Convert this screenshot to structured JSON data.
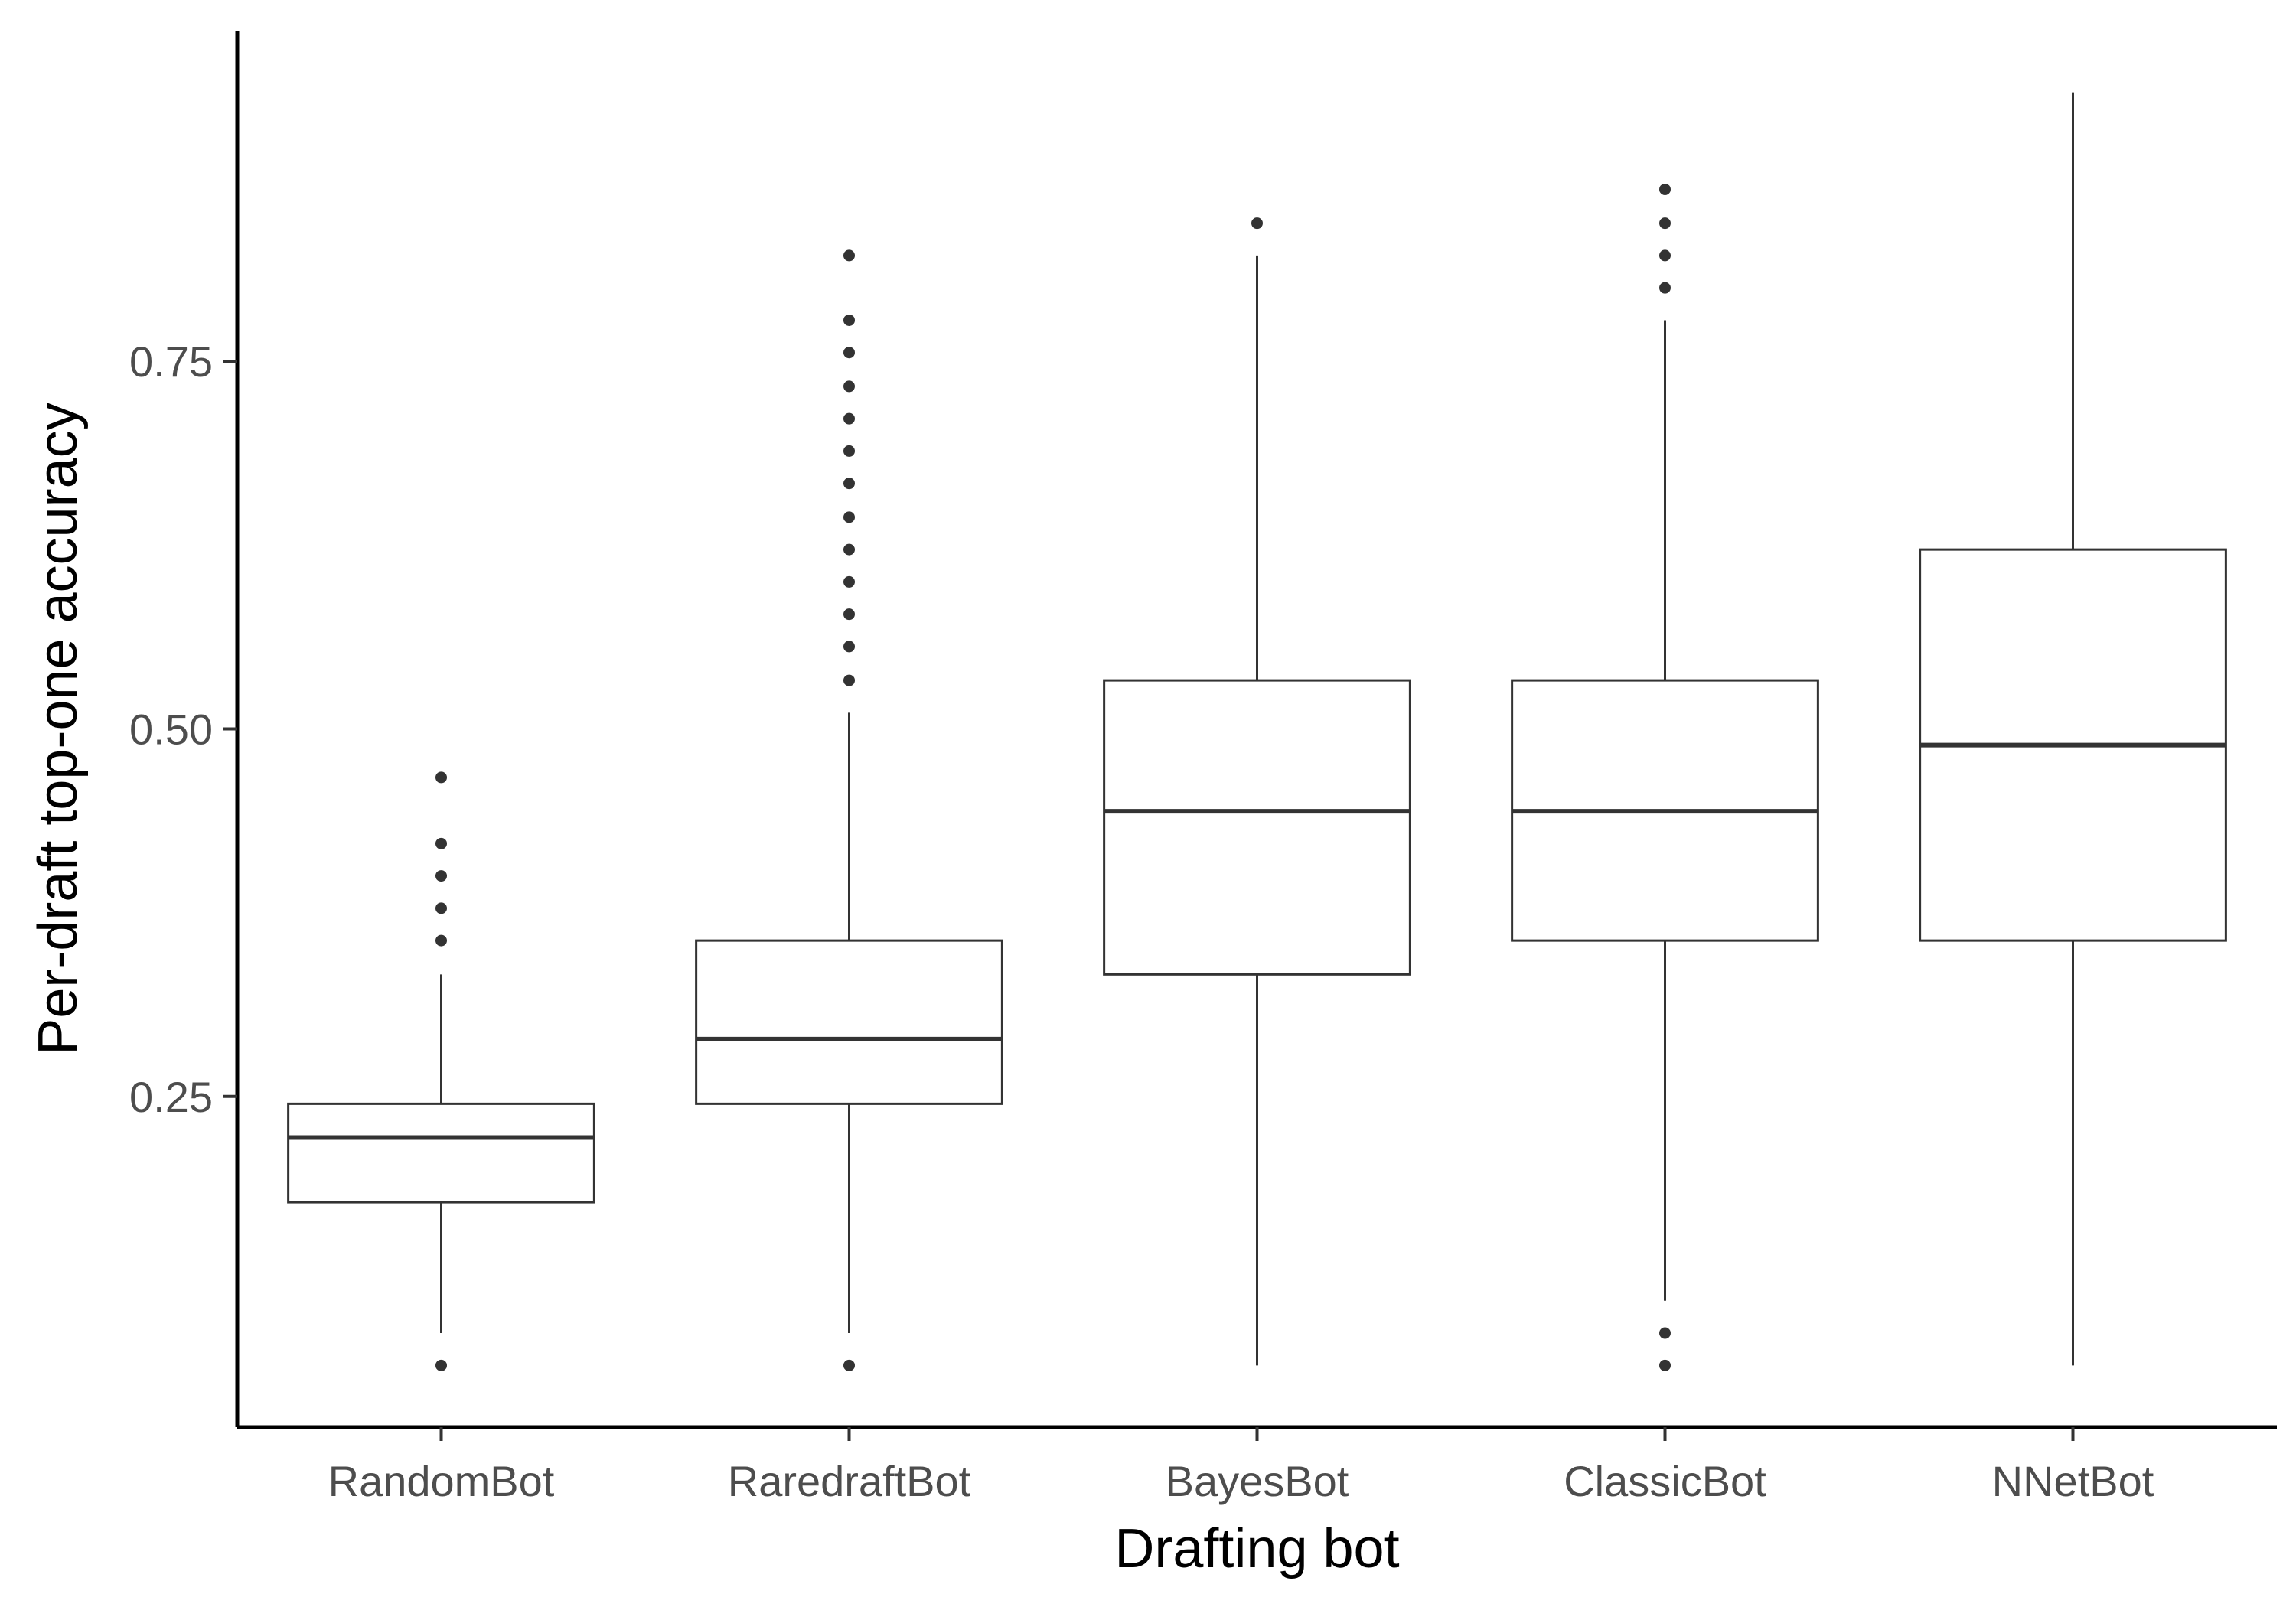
{
  "chart_data": {
    "type": "box",
    "xlabel": "Drafting bot",
    "ylabel": "Per-draft top-one accuracy",
    "ylim": [
      0.025,
      0.975
    ],
    "yticks": [
      0.25,
      0.5,
      0.75
    ],
    "ytick_labels": [
      "0.25",
      "0.50",
      "0.75"
    ],
    "grid": false,
    "colors": {
      "box_stroke": "#333333",
      "box_fill": "#ffffff",
      "axis": "#000000"
    },
    "categories": [
      "RandomBot",
      "RaredraftBot",
      "BayesBot",
      "ClassicBot",
      "NNetBot"
    ],
    "boxes": [
      {
        "q1": 0.178,
        "median": 0.222,
        "q3": 0.245,
        "whisker_low": 0.089,
        "whisker_high": 0.333,
        "outliers": [
          0.067,
          0.356,
          0.378,
          0.4,
          0.422,
          0.467
        ]
      },
      {
        "q1": 0.245,
        "median": 0.289,
        "q3": 0.356,
        "whisker_low": 0.089,
        "whisker_high": 0.511,
        "outliers": [
          0.067,
          0.533,
          0.556,
          0.578,
          0.6,
          0.622,
          0.644,
          0.667,
          0.689,
          0.711,
          0.733,
          0.756,
          0.778,
          0.822
        ]
      },
      {
        "q1": 0.333,
        "median": 0.444,
        "q3": 0.533,
        "whisker_low": 0.067,
        "whisker_high": 0.822,
        "outliers": [
          0.844
        ]
      },
      {
        "q1": 0.356,
        "median": 0.444,
        "q3": 0.533,
        "whisker_low": 0.111,
        "whisker_high": 0.778,
        "outliers": [
          0.067,
          0.089,
          0.8,
          0.822,
          0.844,
          0.867
        ]
      },
      {
        "q1": 0.356,
        "median": 0.489,
        "q3": 0.622,
        "whisker_low": 0.067,
        "whisker_high": 0.933,
        "outliers": []
      }
    ]
  }
}
